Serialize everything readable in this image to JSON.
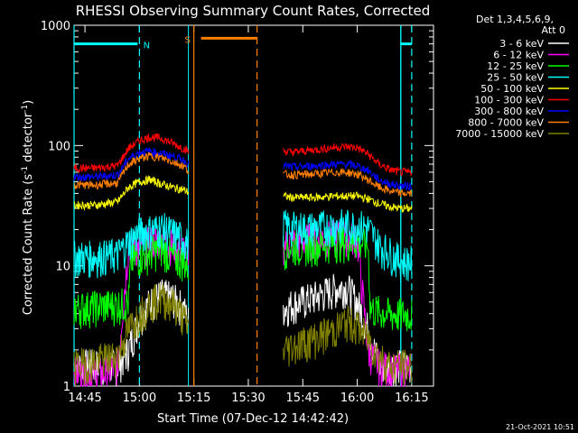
{
  "chart_data": {
    "type": "line",
    "title": "RHESSI Observing Summary Count Rates, Corrected",
    "xlabel": "Start Time (07-Dec-12 14:42:42)",
    "ylabel": "Corrected Count Rate (s⁻¹ detector⁻¹)",
    "ylabel_main": "Corrected Count Rate (s",
    "ylabel_sup1": "-1",
    "ylabel_mid": " detector",
    "ylabel_sup2": "-1",
    "ylabel_end": ")",
    "yscale": "log",
    "ylim": [
      1,
      1000
    ],
    "xlim_minutes": [
      14.7,
      16.35
    ],
    "x_unit": "hours (decimal, 14.7 = 14:42)",
    "xticks": [
      {
        "v": 14.75,
        "label": "14:45"
      },
      {
        "v": 15.0,
        "label": "15:00"
      },
      {
        "v": 15.25,
        "label": "15:15"
      },
      {
        "v": 15.5,
        "label": "15:30"
      },
      {
        "v": 15.75,
        "label": "15:45"
      },
      {
        "v": 16.0,
        "label": "16:00"
      },
      {
        "v": 16.25,
        "label": "16:15"
      }
    ],
    "yticks": [
      {
        "v": 1,
        "label": "1"
      },
      {
        "v": 10,
        "label": "10"
      },
      {
        "v": 100,
        "label": "100"
      },
      {
        "v": 1000,
        "label": "1000"
      }
    ],
    "legend_header": [
      "Det 1,3,4,5,6,9,",
      "Att 0"
    ],
    "series": [
      {
        "name": "3 - 6 keV",
        "color": "#ffffff",
        "x": [
          14.7,
          14.9,
          14.95,
          15.0,
          15.05,
          15.1,
          15.15,
          15.2,
          15.225,
          15.66,
          15.7,
          15.8,
          15.9,
          15.95,
          16.0,
          16.05,
          16.1,
          16.15,
          16.2,
          16.25
        ],
        "y": [
          1.5,
          1.5,
          2.0,
          3.8,
          5.0,
          5.8,
          5.5,
          4.5,
          3.5,
          4.5,
          4.8,
          5.5,
          6.5,
          6.8,
          5.0,
          3.0,
          1.5,
          1.5,
          1.5,
          1.5
        ]
      },
      {
        "name": "6 - 12 keV",
        "color": "#ff00ff",
        "x": [
          14.7,
          14.85,
          14.9,
          14.95,
          15.0,
          15.05,
          15.1,
          15.15,
          15.2,
          15.225,
          15.66,
          15.7,
          15.8,
          15.9,
          15.95,
          16.0,
          16.05,
          16.1,
          16.15,
          16.2,
          16.25
        ],
        "y": [
          1.3,
          1.3,
          1.5,
          15,
          14,
          16,
          17,
          15,
          14,
          13,
          15,
          16,
          17,
          18,
          18,
          17,
          2.0,
          1.5,
          1.4,
          1.4,
          1.4
        ]
      },
      {
        "name": "12 - 25 keV",
        "color": "#00ff00",
        "x": [
          14.7,
          14.9,
          14.95,
          14.96,
          15.0,
          15.05,
          15.1,
          15.15,
          15.2,
          15.225,
          15.66,
          15.7,
          15.8,
          15.9,
          15.95,
          16.0,
          16.05,
          16.06,
          16.1,
          16.15,
          16.2,
          16.25
        ],
        "y": [
          4.5,
          4.8,
          5.0,
          11,
          12,
          13,
          14,
          12,
          11,
          10,
          14,
          14.5,
          15,
          16,
          16,
          16,
          15,
          4.5,
          4.2,
          4.0,
          4.0,
          4.0
        ]
      },
      {
        "name": "25 - 50 keV",
        "color": "#00ffff",
        "x": [
          14.7,
          14.8,
          14.9,
          14.95,
          15.0,
          15.05,
          15.1,
          15.15,
          15.2,
          15.225,
          15.66,
          15.7,
          15.8,
          15.9,
          15.95,
          16.0,
          16.05,
          16.1,
          16.15,
          16.2,
          16.25
        ],
        "y": [
          12,
          12,
          12.5,
          16,
          19,
          20,
          21,
          19,
          17,
          15,
          22,
          21,
          21,
          22,
          22,
          22,
          21,
          15,
          13,
          11,
          11
        ]
      },
      {
        "name": "50 - 100 keV",
        "color": "#ffff00",
        "x": [
          14.7,
          14.8,
          14.9,
          14.95,
          15.0,
          15.05,
          15.1,
          15.15,
          15.2,
          15.225,
          15.66,
          15.7,
          15.8,
          15.9,
          15.95,
          16.0,
          16.05,
          16.1,
          16.15,
          16.2,
          16.25
        ],
        "y": [
          32,
          32,
          34,
          45,
          50,
          52,
          48,
          45,
          43,
          41,
          38,
          37,
          37,
          38,
          38,
          38,
          36,
          33,
          31,
          30,
          30
        ]
      },
      {
        "name": "100 - 300 keV",
        "color": "#ff0000",
        "x": [
          14.7,
          14.8,
          14.9,
          14.95,
          15.0,
          15.05,
          15.1,
          15.15,
          15.2,
          15.225,
          15.66,
          15.7,
          15.8,
          15.9,
          15.95,
          16.0,
          16.05,
          16.1,
          16.15,
          16.2,
          16.25
        ],
        "y": [
          65,
          65,
          68,
          95,
          110,
          118,
          115,
          105,
          95,
          90,
          90,
          88,
          92,
          97,
          98,
          96,
          85,
          70,
          63,
          60,
          60
        ]
      },
      {
        "name": "300 - 800 keV",
        "color": "#0000ff",
        "x": [
          14.7,
          14.8,
          14.9,
          14.95,
          15.0,
          15.05,
          15.1,
          15.15,
          15.2,
          15.225,
          15.66,
          15.7,
          15.8,
          15.9,
          15.95,
          16.0,
          16.05,
          16.1,
          16.15,
          16.2,
          16.25
        ],
        "y": [
          55,
          55,
          57,
          78,
          88,
          90,
          86,
          82,
          76,
          70,
          68,
          66,
          68,
          70,
          70,
          68,
          62,
          52,
          48,
          46,
          46
        ]
      },
      {
        "name": "800 - 7000 keV",
        "color": "#ff8000",
        "x": [
          14.7,
          14.8,
          14.9,
          14.95,
          15.0,
          15.05,
          15.1,
          15.15,
          15.2,
          15.225,
          15.66,
          15.7,
          15.8,
          15.9,
          15.95,
          16.0,
          16.05,
          16.1,
          16.15,
          16.2,
          16.25
        ],
        "y": [
          47,
          47,
          49,
          70,
          78,
          82,
          79,
          74,
          68,
          62,
          58,
          57,
          58,
          60,
          60,
          58,
          52,
          45,
          42,
          40,
          40
        ]
      },
      {
        "name": "7000 - 15000 keV",
        "color": "#808000",
        "x": [
          14.7,
          14.9,
          14.95,
          15.0,
          15.05,
          15.1,
          15.15,
          15.2,
          15.225,
          15.66,
          15.7,
          15.8,
          15.9,
          15.95,
          16.0,
          16.05,
          16.1,
          16.15,
          16.2,
          16.25
        ],
        "y": [
          1.5,
          1.8,
          3.0,
          4.0,
          5.0,
          5.5,
          5.0,
          3.8,
          3.0,
          2.0,
          2.2,
          2.5,
          3.0,
          3.5,
          3.2,
          2.5,
          1.8,
          1.5,
          1.5,
          1.5
        ]
      }
    ],
    "gaps": [
      [
        15.225,
        15.66
      ]
    ],
    "markers": [
      {
        "label": "N",
        "color": "#00ffff",
        "x_solid": 14.7,
        "x_dashed": 15.0,
        "y": 700
      },
      {
        "label": "",
        "color": "#00ffff",
        "x_solid": 16.2,
        "x_dashed": 16.25,
        "y": 700
      },
      {
        "label": "S",
        "color": "#ff8000",
        "x_solid": 15.25,
        "x_dashed": 15.54,
        "y": 780
      }
    ],
    "extra_lines": [
      {
        "color": "#00ffff",
        "x": 15.225
      },
      {
        "color": "#00ffff",
        "x": 16.2
      }
    ],
    "grid": false,
    "legend_placement": "right"
  },
  "footer": {
    "date": "21-Oct-2021 10:51"
  }
}
